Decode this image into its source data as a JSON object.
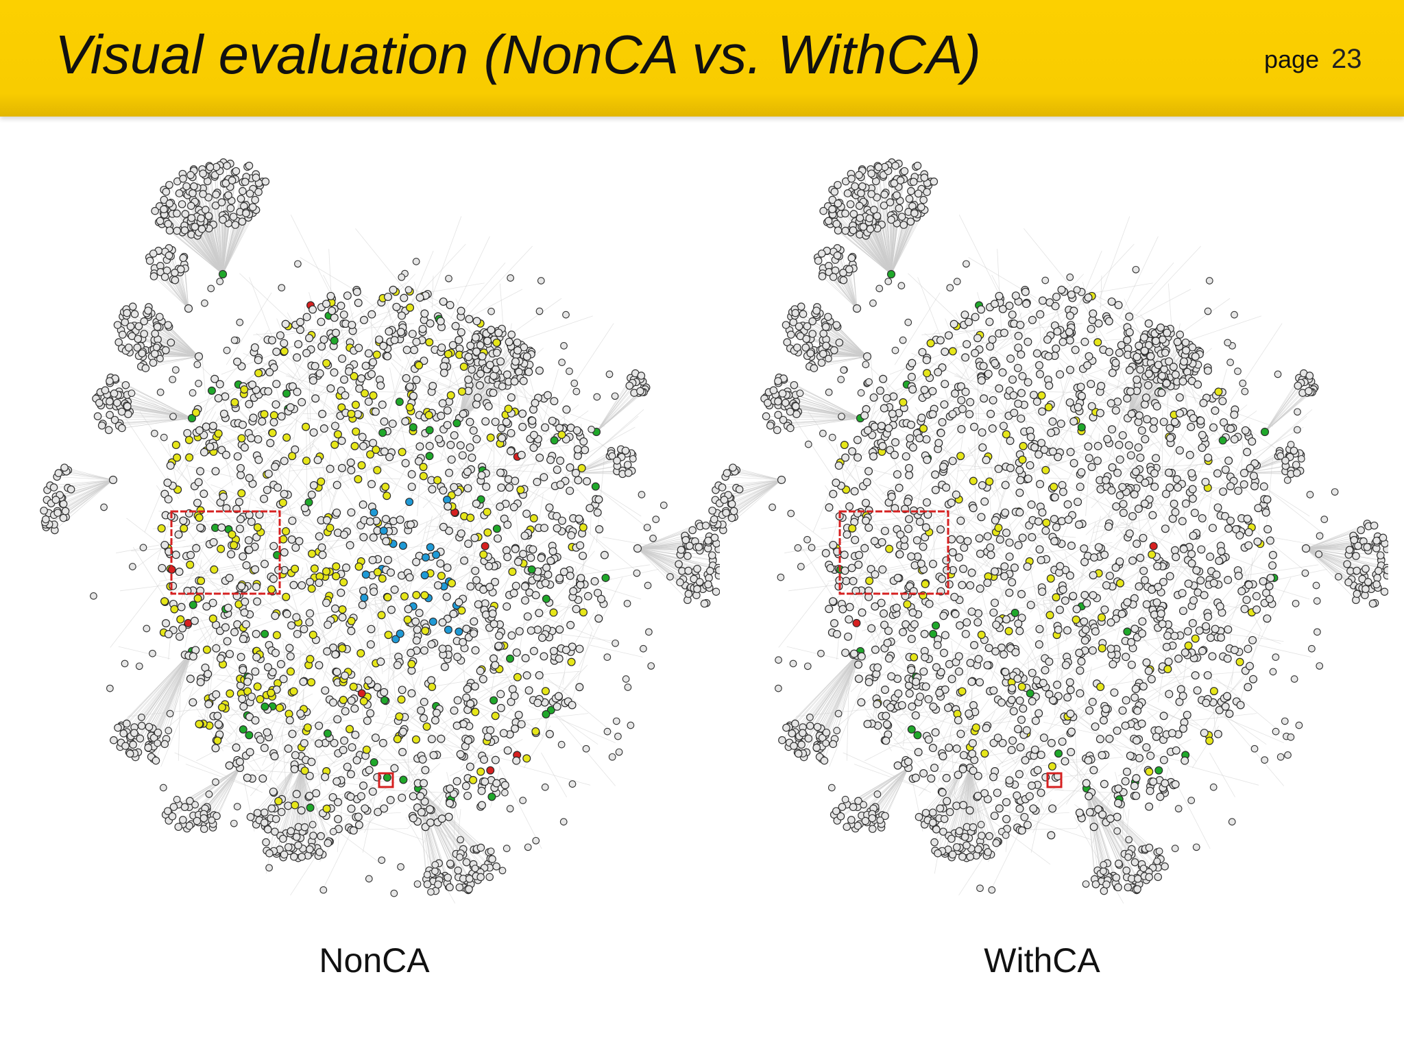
{
  "slide": {
    "title": "Visual evaluation (NonCA vs. WithCA)",
    "page_label": "page",
    "page_number": "23"
  },
  "colors": {
    "header_bg": "#f8cc00",
    "node_default": "#e6e6e6",
    "node_yellow": "#e6e619",
    "node_green": "#1fa82a",
    "node_red": "#d62020",
    "node_blue": "#1f9ad6",
    "edge": "#cccccc",
    "highlight_box": "#d62020"
  },
  "panels": [
    {
      "caption": "NonCA",
      "highlight_mix": {
        "yellow": 0.16,
        "green": 0.012,
        "red": 0.006,
        "blue": 0.03
      }
    },
    {
      "caption": "WithCA",
      "highlight_mix": {
        "yellow": 0.05,
        "green": 0.015,
        "red": 0.003,
        "blue": 0
      }
    }
  ]
}
